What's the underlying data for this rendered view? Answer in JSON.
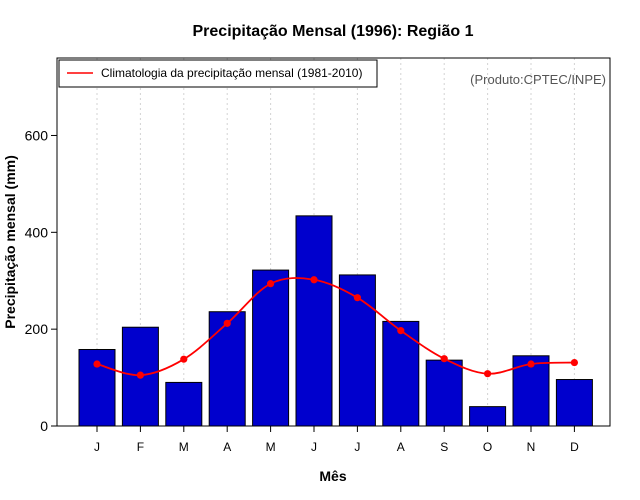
{
  "chart_data": {
    "type": "bar",
    "title": "Precipitação Mensal (1996): Região 1",
    "xlabel": "Mês",
    "ylabel": "Precipitação mensal (mm)",
    "categories": [
      "J",
      "F",
      "M",
      "A",
      "M",
      "J",
      "J",
      "A",
      "S",
      "O",
      "N",
      "D"
    ],
    "series": [
      {
        "name": "Precipitação mensal (1996)",
        "kind": "bar",
        "color": "#0000cd",
        "values": [
          158,
          204,
          90,
          236,
          322,
          434,
          312,
          216,
          136,
          40,
          145,
          96
        ]
      },
      {
        "name": "Climatologia da precipitação mensal (1981-2010)",
        "kind": "line",
        "color": "#ff0000",
        "values": [
          128,
          105,
          138,
          212,
          294,
          302,
          265,
          197,
          139,
          108,
          128,
          131
        ]
      }
    ],
    "ylim": [
      0,
      760
    ],
    "yticks": [
      0,
      200,
      400,
      600
    ],
    "grid": "vertical dotted",
    "legend": "top-left",
    "legend_entries": [
      "Climatologia da precipitação mensal (1981-2010)"
    ],
    "credit": "(Produto:CPTEC/INPE)"
  }
}
